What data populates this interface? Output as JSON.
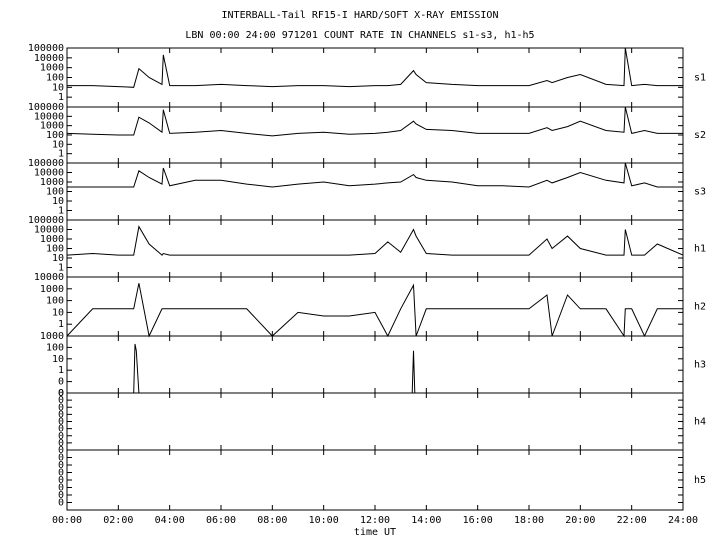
{
  "header": {
    "title": "INTERBALL-Tail RF15-I HARD/SOFT X-RAY EMISSION",
    "subtitle": "LBN 00:00 24:00 971201  COUNT RATE IN CHANNELS s1-s3, h1-h5"
  },
  "chart_data": [
    {
      "type": "line",
      "name": "s1",
      "log": true,
      "xlim": [
        0,
        24
      ],
      "ylim": [
        0.1,
        100000
      ],
      "yticks": [
        1,
        10,
        100,
        1000,
        10000,
        100000
      ],
      "x": [
        0,
        1,
        2,
        2.6,
        2.8,
        3.2,
        3.7,
        3.75,
        4,
        5,
        6,
        7,
        8,
        9,
        10,
        11,
        12,
        12.5,
        13,
        13.5,
        13.6,
        14,
        15,
        16,
        17,
        18,
        18.7,
        18.9,
        19.5,
        20,
        21,
        21.7,
        21.75,
        22,
        22.5,
        23,
        24
      ],
      "values": [
        15,
        15,
        12,
        10,
        800,
        100,
        20,
        20000,
        15,
        15,
        20,
        15,
        12,
        15,
        15,
        12,
        15,
        15,
        20,
        500,
        200,
        30,
        20,
        15,
        15,
        15,
        50,
        30,
        100,
        200,
        20,
        15,
        100000,
        15,
        20,
        15,
        15
      ]
    },
    {
      "type": "line",
      "name": "s2",
      "log": true,
      "xlim": [
        0,
        24
      ],
      "ylim": [
        0.1,
        100000
      ],
      "yticks": [
        1,
        10,
        100,
        1000,
        10000,
        100000
      ],
      "x": [
        0,
        1,
        2,
        2.6,
        2.8,
        3.2,
        3.7,
        3.75,
        4,
        5,
        6,
        7,
        8,
        9,
        10,
        11,
        12,
        12.5,
        13,
        13.5,
        13.6,
        14,
        15,
        16,
        17,
        18,
        18.7,
        18.9,
        19.5,
        20,
        21,
        21.7,
        21.75,
        22,
        22.5,
        23,
        24
      ],
      "values": [
        150,
        120,
        100,
        100,
        8000,
        2000,
        200,
        50000,
        150,
        200,
        300,
        150,
        80,
        150,
        200,
        120,
        150,
        200,
        300,
        3000,
        1500,
        400,
        300,
        150,
        150,
        150,
        600,
        300,
        800,
        3000,
        300,
        200,
        100000,
        150,
        300,
        150,
        150
      ]
    },
    {
      "type": "line",
      "name": "s3",
      "log": true,
      "xlim": [
        0,
        24
      ],
      "ylim": [
        0.1,
        100000
      ],
      "yticks": [
        1,
        10,
        100,
        1000,
        10000,
        100000
      ],
      "x": [
        0,
        1,
        2,
        2.6,
        2.8,
        3.2,
        3.7,
        3.75,
        4,
        5,
        6,
        7,
        8,
        9,
        10,
        11,
        12,
        12.5,
        13,
        13.5,
        13.6,
        14,
        15,
        16,
        17,
        18,
        18.7,
        18.9,
        19.5,
        20,
        21,
        21.7,
        21.75,
        22,
        22.5,
        23,
        24
      ],
      "values": [
        300,
        300,
        300,
        300,
        15000,
        3000,
        600,
        30000,
        400,
        1500,
        1500,
        600,
        300,
        600,
        1000,
        400,
        600,
        800,
        1000,
        6000,
        3000,
        1500,
        1000,
        400,
        400,
        300,
        1500,
        800,
        3000,
        10000,
        1500,
        800,
        100000,
        400,
        800,
        300,
        300
      ]
    },
    {
      "type": "line",
      "name": "h1",
      "log": true,
      "xlim": [
        0,
        24
      ],
      "ylim": [
        0.1,
        100000
      ],
      "yticks": [
        1,
        10,
        100,
        1000,
        10000,
        100000
      ],
      "x": [
        0,
        1,
        2,
        2.6,
        2.8,
        3.2,
        3.7,
        3.75,
        4,
        5,
        6,
        7,
        8,
        9,
        10,
        11,
        12,
        12.5,
        13,
        13.5,
        13.6,
        14,
        15,
        16,
        17,
        18,
        18.7,
        18.9,
        19.5,
        20,
        21,
        21.7,
        21.75,
        22,
        22.5,
        23,
        24
      ],
      "values": [
        20,
        30,
        20,
        20,
        20000,
        300,
        20,
        30,
        20,
        20,
        20,
        20,
        20,
        20,
        20,
        20,
        30,
        500,
        40,
        10000,
        2000,
        30,
        20,
        20,
        20,
        20,
        1000,
        100,
        2000,
        100,
        20,
        20,
        10000,
        20,
        20,
        300,
        20
      ]
    },
    {
      "type": "line",
      "name": "h2",
      "log": true,
      "xlim": [
        0,
        24
      ],
      "ylim": [
        0.1,
        10000
      ],
      "yticks": [
        1,
        10,
        100,
        1000,
        10000
      ],
      "x": [
        0,
        1,
        2,
        2.6,
        2.8,
        3.2,
        3.7,
        3.75,
        4,
        5,
        6,
        7,
        8,
        9,
        10,
        11,
        12,
        12.5,
        13,
        13.5,
        13.6,
        14,
        15,
        16,
        17,
        18,
        18.7,
        18.9,
        19.5,
        20,
        21,
        21.7,
        21.75,
        22,
        22.5,
        23,
        24
      ],
      "values": [
        0.1,
        20,
        20,
        20,
        3000,
        0.1,
        20,
        20,
        20,
        20,
        20,
        20,
        0.1,
        10,
        5,
        5,
        10,
        0.1,
        20,
        2000,
        0.1,
        20,
        20,
        20,
        20,
        20,
        300,
        0.1,
        300,
        20,
        20,
        0.1,
        20,
        20,
        0.1,
        20,
        20
      ]
    },
    {
      "type": "line",
      "name": "h3",
      "log": true,
      "xlim": [
        0,
        24
      ],
      "ylim": [
        0.01,
        1000
      ],
      "yticks": [
        1000,
        100,
        10,
        1,
        {
          "value": 0.1,
          "label": "0"
        },
        {
          "value": 0.01,
          "label": "0"
        }
      ],
      "x": [
        0,
        2.6,
        2.65,
        2.7,
        2.8,
        13.45,
        13.5,
        13.55,
        24
      ],
      "values": [
        0.01,
        0.01,
        200,
        50,
        0.01,
        0.01,
        50,
        0.01,
        0.01
      ]
    },
    {
      "type": "line",
      "name": "h4",
      "log": true,
      "xlim": [
        0,
        24
      ],
      "ylim": [
        1e-08,
        1
      ],
      "yticks": [
        {
          "value": 1,
          "label": "0"
        },
        {
          "value": 0.1,
          "label": "0"
        },
        {
          "value": 0.01,
          "label": "0"
        },
        {
          "value": 0.001,
          "label": "0"
        },
        {
          "value": 0.0001,
          "label": "0"
        },
        {
          "value": 1e-05,
          "label": "0"
        },
        {
          "value": 1e-06,
          "label": "0"
        },
        {
          "value": 1e-07,
          "label": "0"
        }
      ]
    },
    {
      "type": "line",
      "name": "h5",
      "log": true,
      "xlim": [
        0,
        24
      ],
      "ylim": [
        1e-08,
        1
      ],
      "yticks": [
        {
          "value": 1,
          "label": "0"
        },
        {
          "value": 0.1,
          "label": "0"
        },
        {
          "value": 0.01,
          "label": "0"
        },
        {
          "value": 0.001,
          "label": "0"
        },
        {
          "value": 0.0001,
          "label": "0"
        },
        {
          "value": 1e-05,
          "label": "0"
        },
        {
          "value": 1e-06,
          "label": "0"
        },
        {
          "value": 1e-07,
          "label": "0"
        }
      ],
      "xlabel": "time UT",
      "xticks": [
        {
          "value": 0,
          "label": "00:00"
        },
        {
          "value": 2,
          "label": "02:00"
        },
        {
          "value": 4,
          "label": "04:00"
        },
        {
          "value": 6,
          "label": "06:00"
        },
        {
          "value": 8,
          "label": "08:00"
        },
        {
          "value": 10,
          "label": "10:00"
        },
        {
          "value": 12,
          "label": "12:00"
        },
        {
          "value": 14,
          "label": "14:00"
        },
        {
          "value": 16,
          "label": "16:00"
        },
        {
          "value": 18,
          "label": "18:00"
        },
        {
          "value": 20,
          "label": "20:00"
        },
        {
          "value": 22,
          "label": "22:00"
        },
        {
          "value": 24,
          "label": "24:00"
        }
      ]
    }
  ]
}
